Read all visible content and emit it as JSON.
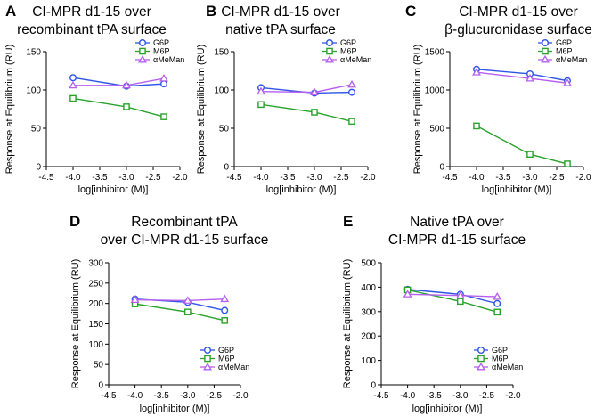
{
  "series_styles": {
    "G6P": {
      "color": "#2e55e6",
      "marker": "circle"
    },
    "M6P": {
      "color": "#27a32a",
      "marker": "square"
    },
    "αMeMan": {
      "color": "#b65ef0",
      "marker": "triangle"
    }
  },
  "chart_data": [
    {
      "letter": "A",
      "type": "line",
      "title": [
        "CI-MPR d1-15 over",
        "recombinant tPA surface"
      ],
      "xlabel": "log[inhibitor (M)]",
      "ylabel": "Response at Equilibrium (RU)",
      "xlim": [
        -4.5,
        -2.0
      ],
      "ylim": [
        0,
        150
      ],
      "xticks": [
        "-4.5",
        "-4.0",
        "-3.5",
        "-3.0",
        "-2.5",
        "-2.0"
      ],
      "yticks": [
        "0",
        "50",
        "100",
        "150"
      ],
      "legend_position": "top-right",
      "x": [
        -4.0,
        -3.0,
        -2.3
      ],
      "series": [
        {
          "name": "G6P",
          "values": [
            116,
            105,
            108
          ]
        },
        {
          "name": "M6P",
          "values": [
            89,
            78,
            65
          ]
        },
        {
          "name": "αMeMan",
          "values": [
            106,
            106,
            115
          ]
        }
      ]
    },
    {
      "letter": "B",
      "type": "line",
      "title": [
        "CI-MPR d1-15 over",
        "native tPA surface"
      ],
      "xlabel": "log[inhibitor (M)]",
      "ylabel": "Response at Equilibrium (RU)",
      "xlim": [
        -4.5,
        -2.0
      ],
      "ylim": [
        0,
        150
      ],
      "xticks": [
        "-4.5",
        "-4.0",
        "-3.5",
        "-3.0",
        "-2.5",
        "-2.0"
      ],
      "yticks": [
        "0",
        "50",
        "100",
        "150"
      ],
      "legend_position": "top-right",
      "x": [
        -4.0,
        -3.0,
        -2.3
      ],
      "series": [
        {
          "name": "G6P",
          "values": [
            103,
            96,
            97
          ]
        },
        {
          "name": "M6P",
          "values": [
            81,
            71,
            59
          ]
        },
        {
          "name": "αMeMan",
          "values": [
            98,
            97,
            107
          ]
        }
      ]
    },
    {
      "letter": "C",
      "type": "line",
      "title": [
        "CI-MPR d1-15 over",
        "β-glucuronidase surface"
      ],
      "xlabel": "log[inhibitor (M)]",
      "ylabel": "Response at Equilibrium (RU)",
      "xlim": [
        -4.5,
        -2.0
      ],
      "ylim": [
        0,
        1500
      ],
      "xticks": [
        "-4.5",
        "-4.0",
        "-3.5",
        "-3.0",
        "-2.5",
        "-2.0"
      ],
      "yticks": [
        "0",
        "500",
        "1000",
        "1500"
      ],
      "legend_position": "top-right",
      "x": [
        -4.0,
        -3.0,
        -2.3
      ],
      "series": [
        {
          "name": "G6P",
          "values": [
            1270,
            1210,
            1120
          ]
        },
        {
          "name": "M6P",
          "values": [
            530,
            160,
            35
          ]
        },
        {
          "name": "αMeMan",
          "values": [
            1230,
            1150,
            1090
          ]
        }
      ]
    },
    {
      "letter": "D",
      "type": "line",
      "title": [
        "Recombinant tPA",
        "over CI-MPR d1-15 surface"
      ],
      "xlabel": "log[inhibitor (M)]",
      "ylabel": "Response at Equilibrium (RU)",
      "xlim": [
        -4.5,
        -2.0
      ],
      "ylim": [
        0,
        300
      ],
      "xticks": [
        "-4.5",
        "-4.0",
        "-3.5",
        "-3.0",
        "-2.5",
        "-2.0"
      ],
      "yticks": [
        "0",
        "50",
        "100",
        "150",
        "200",
        "250",
        "300"
      ],
      "legend_position": "bottom-right",
      "x": [
        -4.0,
        -3.0,
        -2.3
      ],
      "series": [
        {
          "name": "G6P",
          "values": [
            211,
            203,
            183
          ]
        },
        {
          "name": "M6P",
          "values": [
            199,
            179,
            158
          ]
        },
        {
          "name": "αMeMan",
          "values": [
            209,
            207,
            211
          ]
        }
      ]
    },
    {
      "letter": "E",
      "type": "line",
      "title": [
        "Native tPA over",
        "CI-MPR d1-15 surface"
      ],
      "xlabel": "log[inhibitor (M)]",
      "ylabel": "Response at Equilibrium (RU)",
      "xlim": [
        -4.5,
        -2.0
      ],
      "ylim": [
        0,
        500
      ],
      "xticks": [
        "-4.5",
        "-4.0",
        "-3.5",
        "-3.0",
        "-2.5",
        "-2.0"
      ],
      "yticks": [
        "0",
        "100",
        "200",
        "300",
        "400",
        "500"
      ],
      "legend_position": "bottom-right",
      "x": [
        -4.0,
        -3.0,
        -2.3
      ],
      "series": [
        {
          "name": "G6P",
          "values": [
            391,
            371,
            333
          ]
        },
        {
          "name": "M6P",
          "values": [
            389,
            342,
            298
          ]
        },
        {
          "name": "αMeMan",
          "values": [
            371,
            366,
            361
          ]
        }
      ]
    }
  ]
}
